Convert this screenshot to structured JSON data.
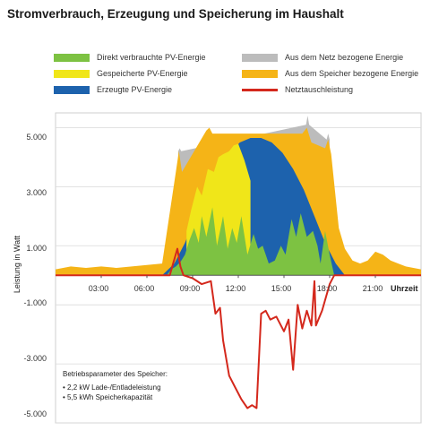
{
  "chart_data": {
    "type": "area",
    "title": "Stromverbrauch, Erzeugung und Speicherung im Haushalt",
    "xlabel": "Uhrzeit",
    "ylabel": "Leistung in Watt",
    "xlim": [
      0,
      24
    ],
    "ylim": [
      -5000,
      5500
    ],
    "y_ticks": [
      5000,
      3000,
      1000,
      -1000,
      -3000,
      -5000
    ],
    "y_tick_labels": [
      "5.000",
      "3.000",
      "1.000",
      "-1.000",
      "-3.000",
      "-5.000"
    ],
    "x_ticks": [
      3,
      6,
      9,
      12,
      15,
      18,
      21
    ],
    "x_tick_labels": [
      "03:00",
      "06:00",
      "09:00",
      "12:00",
      "15:00",
      "18:00",
      "21:00"
    ],
    "grid": true,
    "legend_position": "top",
    "series": [
      {
        "name": "Direkt verbrauchte PV-Energie",
        "color": "#7dc242",
        "x": [
          7.3,
          7.6,
          7.9,
          8.2,
          8.5,
          8.8,
          9.1,
          9.4,
          9.6,
          9.9,
          10.3,
          10.6,
          11.0,
          11.3,
          11.6,
          11.9,
          12.2,
          12.6,
          13.0,
          13.3,
          13.6,
          14.0,
          14.4,
          14.8,
          15.1,
          15.5,
          15.8,
          16.1,
          16.5,
          16.9,
          17.2,
          17.4,
          17.7,
          18.0,
          18.3
        ],
        "values": [
          0,
          200,
          300,
          450,
          700,
          1200,
          1600,
          1100,
          2000,
          1300,
          2300,
          1000,
          2000,
          900,
          1600,
          1100,
          2000,
          700,
          1400,
          900,
          1000,
          400,
          500,
          1000,
          700,
          1900,
          1300,
          2100,
          1300,
          1500,
          1000,
          400,
          1500,
          700,
          0
        ]
      },
      {
        "name": "Gespeicherte PV-Energie",
        "color": "#f0e619",
        "x": [
          8.6,
          8.9,
          9.3,
          9.6,
          10.0,
          10.4,
          10.7,
          11.0,
          11.4,
          11.7,
          12.0,
          12.4,
          12.8
        ],
        "values": [
          1500,
          2200,
          3000,
          2700,
          3600,
          3500,
          4000,
          4100,
          4200,
          4400,
          4450,
          3900,
          3200
        ]
      },
      {
        "name": "Erzeugte PV-Energie",
        "color": "#1d62ad",
        "x": [
          7.0,
          7.8,
          8.5,
          9.2,
          10.0,
          10.7,
          11.4,
          12.1,
          12.8,
          13.5,
          14.2,
          14.9,
          15.6,
          16.3,
          17.0,
          17.7,
          18.4,
          19.0
        ],
        "values": [
          0,
          400,
          1100,
          2000,
          2900,
          3600,
          4100,
          4500,
          4650,
          4650,
          4500,
          4150,
          3600,
          2900,
          2000,
          1100,
          400,
          0
        ]
      },
      {
        "name": "Aus dem Netz bezogene Energie",
        "color": "#bcbcbc",
        "x": [
          8.05,
          8.15,
          8.25,
          16.45,
          16.55,
          16.65,
          17.8,
          17.9,
          18.0
        ],
        "values": [
          4200,
          4300,
          4200,
          5100,
          5400,
          5100,
          4600,
          4800,
          4600
        ]
      },
      {
        "name": "Aus dem Speicher bezogene Energie",
        "color": "#f5b417",
        "x": [
          0,
          1,
          2,
          3,
          4,
          5,
          6,
          7,
          7.9,
          8.1,
          8.3,
          9.9,
          10.1,
          10.3,
          16.2,
          16.5,
          16.8,
          17.7,
          17.9,
          18.1,
          18.6,
          19.0,
          19.5,
          20.0,
          20.5,
          21.0,
          21.5,
          22.0,
          22.5,
          23.0,
          24.0
        ],
        "values": [
          200,
          300,
          250,
          300,
          250,
          300,
          350,
          400,
          3500,
          4200,
          3500,
          4900,
          5000,
          4800,
          4800,
          5000,
          4500,
          4300,
          4600,
          4100,
          1600,
          900,
          500,
          400,
          500,
          800,
          700,
          500,
          400,
          300,
          200
        ]
      },
      {
        "name": "Netztauschleistung",
        "color": "#d4281c",
        "x": [
          0,
          7.5,
          8.0,
          8.2,
          8.4,
          9.0,
          9.6,
          10.2,
          10.5,
          10.8,
          11.0,
          11.4,
          11.8,
          12.2,
          12.6,
          12.9,
          13.2,
          13.5,
          13.8,
          14.1,
          14.5,
          15.0,
          15.3,
          15.6,
          15.9,
          16.2,
          16.5,
          16.8,
          17.0,
          17.1,
          17.5,
          18.0,
          18.3,
          24.0
        ],
        "values": [
          0,
          0,
          900,
          300,
          0,
          -100,
          -300,
          -200,
          -1300,
          -1100,
          -2200,
          -3400,
          -3800,
          -4200,
          -4500,
          -4400,
          -4500,
          -1300,
          -1200,
          -1500,
          -1400,
          -1900,
          -1500,
          -3200,
          -1000,
          -1800,
          -1200,
          -1700,
          -200,
          -1700,
          -1200,
          -300,
          0,
          0
        ]
      }
    ],
    "annotation": {
      "heading": "Betriebsparameter des Speicher:",
      "lines": [
        "• 2,2 kW Lade-/Entladeleistung",
        "• 5,5 kWh Speicherkapazität"
      ]
    }
  }
}
